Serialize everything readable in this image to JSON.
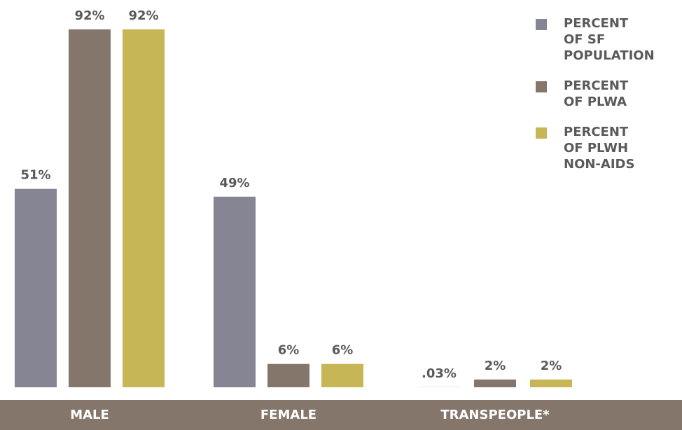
{
  "chart_data": {
    "type": "bar",
    "categories": [
      "MALE",
      "FEMALE",
      "TRANSPEOPLE*"
    ],
    "series": [
      {
        "name": "PERCENT\nOF SF\nPOPULATION",
        "color": "#858594",
        "values": [
          51,
          49,
          0.03
        ],
        "value_labels": [
          "51%",
          "49%",
          ".03%"
        ]
      },
      {
        "name": "PERCENT\nOF PLWA",
        "color": "#85766b",
        "values": [
          92,
          6,
          2
        ],
        "value_labels": [
          "92%",
          "6%",
          "2%"
        ]
      },
      {
        "name": "PERCENT\nOF PLWH\nNON-AIDS",
        "color": "#c6b655",
        "values": [
          92,
          6,
          2
        ],
        "value_labels": [
          "92%",
          "6%",
          "2%"
        ]
      }
    ],
    "legend": "top-right"
  }
}
